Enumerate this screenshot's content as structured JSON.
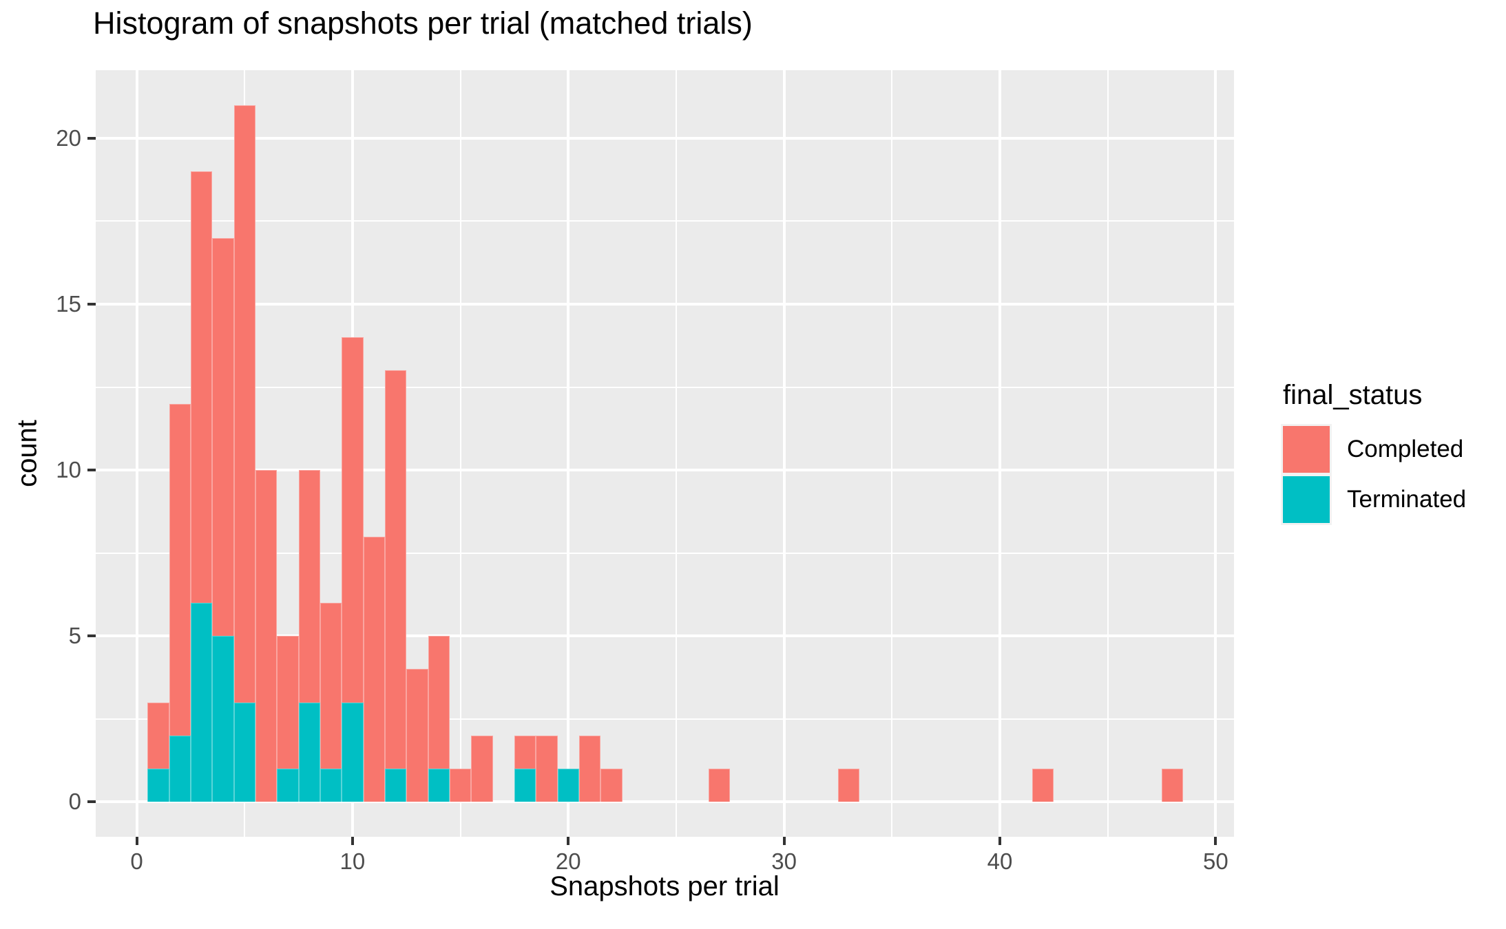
{
  "title": "Histogram of snapshots per trial (matched trials)",
  "axes": {
    "x_title": "Snapshots per trial",
    "y_title": "count",
    "x_tick_labels": [
      "0",
      "10",
      "20",
      "30",
      "40",
      "50"
    ],
    "y_tick_labels": [
      "0",
      "5",
      "10",
      "15",
      "20"
    ]
  },
  "legend": {
    "title": "final_status",
    "entries": [
      {
        "label": "Completed",
        "color": "#F8766D"
      },
      {
        "label": "Terminated",
        "color": "#00BFC4"
      }
    ]
  },
  "colors": {
    "panel_bg": "#EBEBEB",
    "grid": "#FFFFFF",
    "tick_mark": "#333333",
    "tick_label": "#4D4D4D",
    "completed": "#F8766D",
    "terminated": "#00BFC4",
    "legend_key_bg": "#F2F2F2"
  },
  "chart_data": {
    "type": "bar",
    "subtype": "stacked-histogram",
    "title": "Histogram of snapshots per trial (matched trials)",
    "xlabel": "Snapshots per trial",
    "ylabel": "count",
    "binwidth": 1,
    "xlim": [
      -1.9,
      50.85
    ],
    "ylim": [
      -1.05,
      22.05
    ],
    "x_major_ticks": [
      0,
      10,
      20,
      30,
      40,
      50
    ],
    "x_minor_ticks": [
      5,
      15,
      25,
      35,
      45
    ],
    "y_major_ticks": [
      0,
      5,
      10,
      15,
      20
    ],
    "y_minor_ticks": [
      2.5,
      7.5,
      12.5,
      17.5
    ],
    "grid": true,
    "legend_position": "right",
    "series_stack_order_bottom_to_top": [
      "Terminated",
      "Completed"
    ],
    "bins": [
      {
        "x": 1,
        "Completed": 2,
        "Terminated": 1
      },
      {
        "x": 2,
        "Completed": 10,
        "Terminated": 2
      },
      {
        "x": 3,
        "Completed": 13,
        "Terminated": 6
      },
      {
        "x": 4,
        "Completed": 12,
        "Terminated": 5
      },
      {
        "x": 5,
        "Completed": 18,
        "Terminated": 3
      },
      {
        "x": 6,
        "Completed": 10,
        "Terminated": 0
      },
      {
        "x": 7,
        "Completed": 4,
        "Terminated": 1
      },
      {
        "x": 8,
        "Completed": 7,
        "Terminated": 3
      },
      {
        "x": 9,
        "Completed": 5,
        "Terminated": 1
      },
      {
        "x": 10,
        "Completed": 11,
        "Terminated": 3
      },
      {
        "x": 11,
        "Completed": 8,
        "Terminated": 0
      },
      {
        "x": 12,
        "Completed": 12,
        "Terminated": 1
      },
      {
        "x": 13,
        "Completed": 4,
        "Terminated": 0
      },
      {
        "x": 14,
        "Completed": 4,
        "Terminated": 1
      },
      {
        "x": 15,
        "Completed": 1,
        "Terminated": 0
      },
      {
        "x": 16,
        "Completed": 2,
        "Terminated": 0
      },
      {
        "x": 18,
        "Completed": 1,
        "Terminated": 1
      },
      {
        "x": 19,
        "Completed": 2,
        "Terminated": 0
      },
      {
        "x": 20,
        "Completed": 0,
        "Terminated": 1
      },
      {
        "x": 21,
        "Completed": 2,
        "Terminated": 0
      },
      {
        "x": 22,
        "Completed": 1,
        "Terminated": 0
      },
      {
        "x": 27,
        "Completed": 1,
        "Terminated": 0
      },
      {
        "x": 33,
        "Completed": 1,
        "Terminated": 0
      },
      {
        "x": 42,
        "Completed": 1,
        "Terminated": 0
      },
      {
        "x": 48,
        "Completed": 1,
        "Terminated": 0
      }
    ]
  }
}
